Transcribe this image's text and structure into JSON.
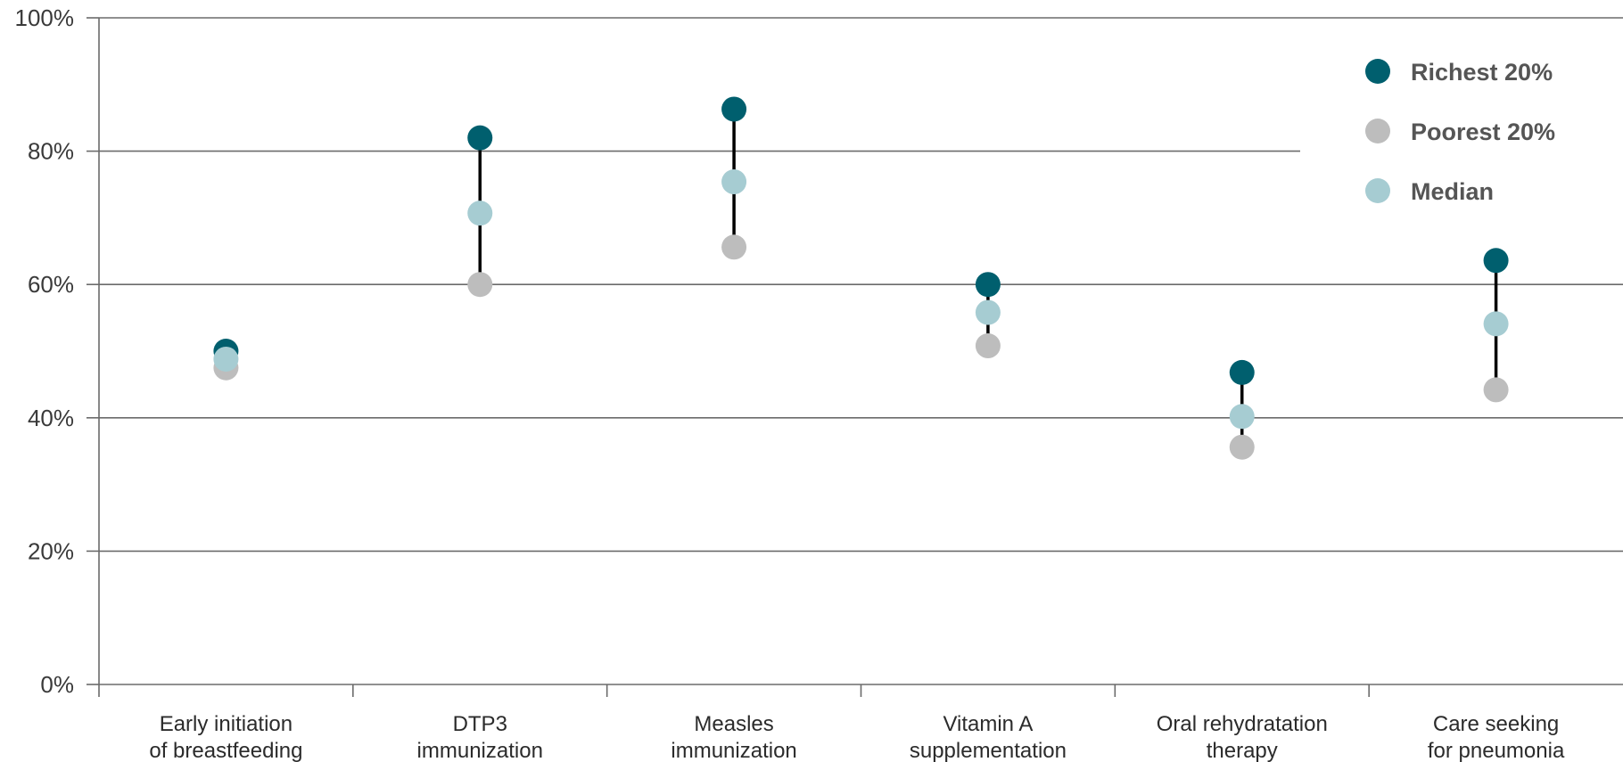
{
  "chart_data": {
    "type": "scatter",
    "categories": [
      [
        "Early initiation",
        "of breastfeeding"
      ],
      [
        "DTP3",
        "immunization"
      ],
      [
        "Measles",
        "immunization"
      ],
      [
        "Vitamin A",
        "supplementation"
      ],
      [
        "Oral rehydratation",
        "therapy"
      ],
      [
        "Care seeking",
        "for pneumonia"
      ]
    ],
    "series": [
      {
        "name": "Richest 20%",
        "color": "#005f6e",
        "values": [
          50,
          82,
          86.3,
          60,
          46.8,
          63.6
        ]
      },
      {
        "name": "Poorest 20%",
        "color": "#bdbdbd",
        "values": [
          47.5,
          60,
          65.6,
          50.8,
          35.6,
          44.2
        ]
      },
      {
        "name": "Median",
        "color": "#a6ccd2",
        "values": [
          48.8,
          70.7,
          75.4,
          55.8,
          40.2,
          54.1
        ]
      }
    ],
    "range_line_color": "#000000",
    "ylim": [
      0,
      100
    ],
    "yticks": [
      0,
      20,
      40,
      60,
      80,
      100
    ],
    "ytick_labels": [
      "0%",
      "20%",
      "40%",
      "60%",
      "80%",
      "100%"
    ],
    "grid": true,
    "legend_position": "top-right",
    "title": "",
    "xlabel": "",
    "ylabel": ""
  }
}
